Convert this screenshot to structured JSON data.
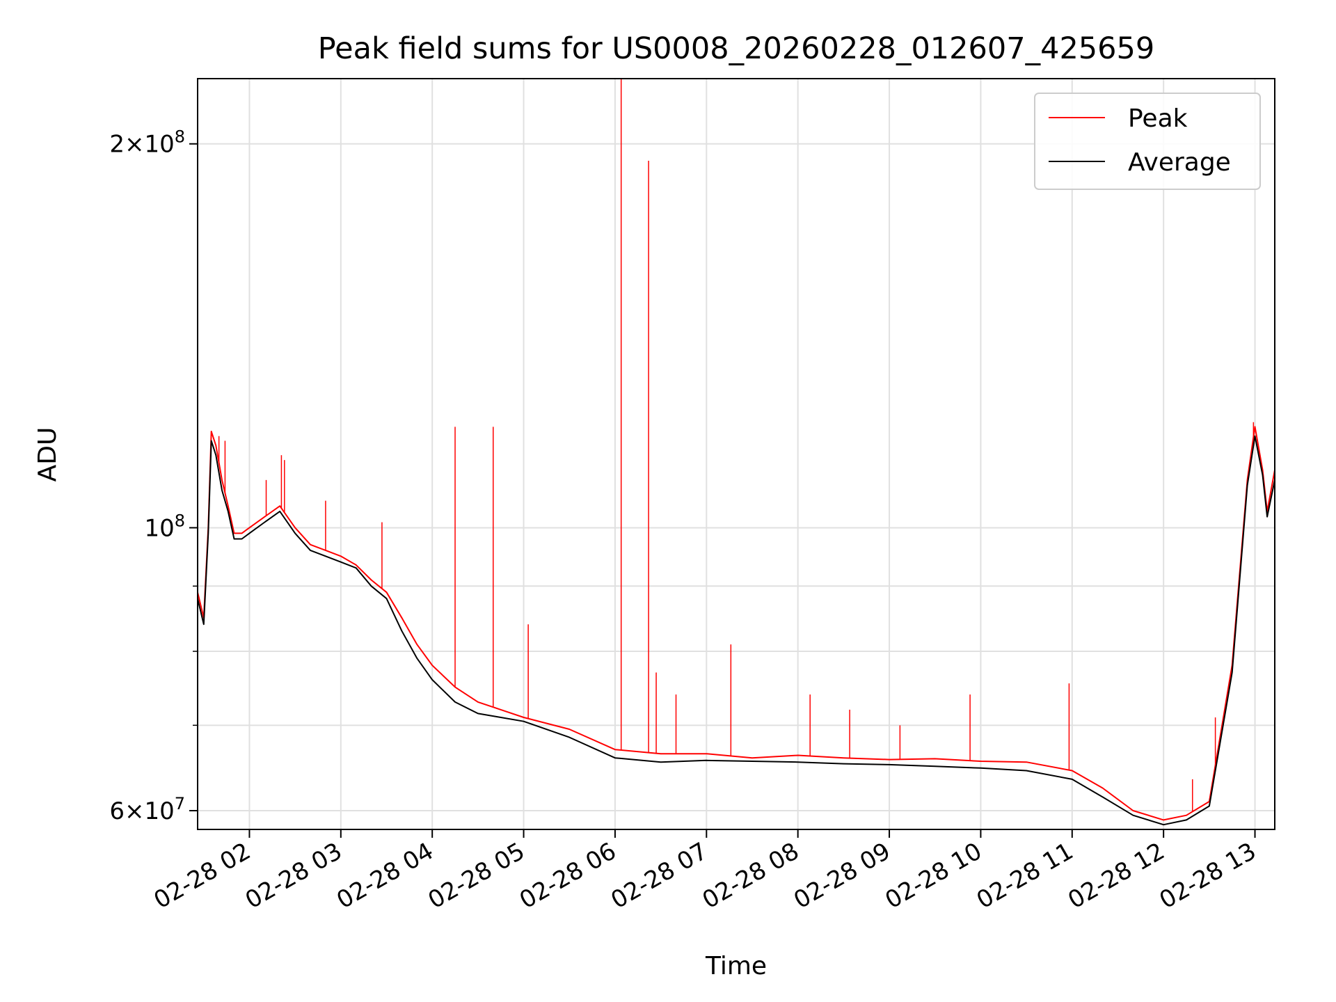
{
  "chart_data": {
    "type": "line",
    "title": "Peak field sums for US0008_20260228_012607_425659",
    "xlabel": "Time",
    "ylabel": "ADU",
    "yscale": "log",
    "ylim": [
      58000000,
      225000000
    ],
    "xlim": [
      "02-28 01:26",
      "02-28 13:13"
    ],
    "grid": true,
    "legend_position": "upper right",
    "x_tick_labels": [
      "02-28 02",
      "02-28 03",
      "02-28 04",
      "02-28 05",
      "02-28 06",
      "02-28 07",
      "02-28 08",
      "02-28 09",
      "02-28 10",
      "02-28 11",
      "02-28 12",
      "02-28 13"
    ],
    "y_major_ticks": [
      {
        "value": 60000000,
        "base": "6",
        "exponent": "7"
      },
      {
        "value": 100000000,
        "base": "",
        "exponent": "8"
      },
      {
        "value": 200000000,
        "base": "2",
        "exponent": "8"
      }
    ],
    "y_minor_ticks": [
      70000000,
      80000000,
      90000000
    ],
    "series": [
      {
        "name": "Peak",
        "color": "#ff0000",
        "x": [
          "02-28 01:26",
          "02-28 01:30",
          "02-28 01:33",
          "02-28 01:35",
          "02-28 01:38",
          "02-28 01:42",
          "02-28 01:46",
          "02-28 01:50",
          "02-28 01:55",
          "02-28 02:00",
          "02-28 02:10",
          "02-28 02:20",
          "02-28 02:30",
          "02-28 02:40",
          "02-28 02:50",
          "02-28 03:00",
          "02-28 03:10",
          "02-28 03:20",
          "02-28 03:30",
          "02-28 03:40",
          "02-28 03:50",
          "02-28 04:00",
          "02-28 04:15",
          "02-28 04:30",
          "02-28 04:45",
          "02-28 05:00",
          "02-28 05:30",
          "02-28 06:00",
          "02-28 06:30",
          "02-28 07:00",
          "02-28 07:30",
          "02-28 08:00",
          "02-28 08:30",
          "02-28 09:00",
          "02-28 09:30",
          "02-28 10:00",
          "02-28 10:30",
          "02-28 11:00",
          "02-28 11:20",
          "02-28 11:40",
          "02-28 12:00",
          "02-28 12:15",
          "02-28 12:30",
          "02-28 12:45",
          "02-28 12:55",
          "02-28 13:00",
          "02-28 13:05",
          "02-28 13:08",
          "02-28 13:13"
        ],
        "y": [
          89000000,
          85000000,
          100000000,
          119000000,
          116000000,
          109000000,
          104000000,
          99000000,
          99000000,
          100000000,
          102000000,
          104000000,
          100000000,
          97000000,
          96000000,
          95000000,
          93500000,
          91000000,
          89000000,
          85000000,
          81000000,
          78000000,
          75000000,
          73000000,
          72000000,
          71000000,
          69500000,
          67000000,
          66500000,
          66500000,
          66000000,
          66300000,
          66000000,
          65800000,
          65900000,
          65600000,
          65500000,
          64500000,
          62500000,
          60000000,
          59000000,
          59500000,
          61000000,
          78000000,
          109000000,
          120000000,
          111000000,
          103000000,
          111000000
        ]
      },
      {
        "name": "Average",
        "color": "#000000",
        "x": [
          "02-28 01:26",
          "02-28 01:30",
          "02-28 01:33",
          "02-28 01:35",
          "02-28 01:38",
          "02-28 01:42",
          "02-28 01:46",
          "02-28 01:50",
          "02-28 01:55",
          "02-28 02:00",
          "02-28 02:10",
          "02-28 02:20",
          "02-28 02:30",
          "02-28 02:40",
          "02-28 02:50",
          "02-28 03:00",
          "02-28 03:10",
          "02-28 03:20",
          "02-28 03:30",
          "02-28 03:40",
          "02-28 03:50",
          "02-28 04:00",
          "02-28 04:15",
          "02-28 04:30",
          "02-28 04:45",
          "02-28 05:00",
          "02-28 05:30",
          "02-28 06:00",
          "02-28 06:30",
          "02-28 07:00",
          "02-28 07:30",
          "02-28 08:00",
          "02-28 08:30",
          "02-28 09:00",
          "02-28 09:30",
          "02-28 10:00",
          "02-28 10:30",
          "02-28 11:00",
          "02-28 11:20",
          "02-28 11:40",
          "02-28 12:00",
          "02-28 12:15",
          "02-28 12:30",
          "02-28 12:45",
          "02-28 12:55",
          "02-28 13:00",
          "02-28 13:05",
          "02-28 13:08",
          "02-28 13:13"
        ],
        "y": [
          88000000,
          84000000,
          99000000,
          117000000,
          114000000,
          107000000,
          103000000,
          98000000,
          98000000,
          99000000,
          101000000,
          103000000,
          99000000,
          96000000,
          95000000,
          94000000,
          93000000,
          90000000,
          88000000,
          83000000,
          79000000,
          76000000,
          73000000,
          71500000,
          71000000,
          70500000,
          68500000,
          66000000,
          65500000,
          65700000,
          65600000,
          65500000,
          65300000,
          65200000,
          65000000,
          64800000,
          64500000,
          63500000,
          61500000,
          59500000,
          58500000,
          59000000,
          60500000,
          77000000,
          108000000,
          118000000,
          110000000,
          102000000,
          109000000
        ]
      }
    ],
    "spikes": [
      {
        "series": "Peak",
        "x": "02-28 01:40",
        "y": 118000000
      },
      {
        "series": "Peak",
        "x": "02-28 01:44",
        "y": 117000000
      },
      {
        "series": "Peak",
        "x": "02-28 02:11",
        "y": 109000000
      },
      {
        "series": "Peak",
        "x": "02-28 02:21",
        "y": 114000000
      },
      {
        "series": "Peak",
        "x": "02-28 02:23",
        "y": 113000000
      },
      {
        "series": "Peak",
        "x": "02-28 02:50",
        "y": 105000000
      },
      {
        "series": "Peak",
        "x": "02-28 03:27",
        "y": 101000000
      },
      {
        "series": "Peak",
        "x": "02-28 04:15",
        "y": 120000000
      },
      {
        "series": "Peak",
        "x": "02-28 04:40",
        "y": 120000000
      },
      {
        "series": "Peak",
        "x": "02-28 05:03",
        "y": 84000000
      },
      {
        "series": "Peak",
        "x": "02-28 06:04",
        "y": 225000000
      },
      {
        "series": "Peak",
        "x": "02-28 06:22",
        "y": 194000000
      },
      {
        "series": "Peak",
        "x": "02-28 06:27",
        "y": 77000000
      },
      {
        "series": "Peak",
        "x": "02-28 06:40",
        "y": 74000000
      },
      {
        "series": "Peak",
        "x": "02-28 07:16",
        "y": 81000000
      },
      {
        "series": "Peak",
        "x": "02-28 08:08",
        "y": 74000000
      },
      {
        "series": "Peak",
        "x": "02-28 08:34",
        "y": 72000000
      },
      {
        "series": "Peak",
        "x": "02-28 09:07",
        "y": 70000000
      },
      {
        "series": "Peak",
        "x": "02-28 09:53",
        "y": 74000000
      },
      {
        "series": "Peak",
        "x": "02-28 10:58",
        "y": 75500000
      },
      {
        "series": "Peak",
        "x": "02-28 12:19",
        "y": 63500000
      },
      {
        "series": "Peak",
        "x": "02-28 12:34",
        "y": 71000000
      },
      {
        "series": "Peak",
        "x": "02-28 12:59",
        "y": 121000000
      }
    ]
  }
}
